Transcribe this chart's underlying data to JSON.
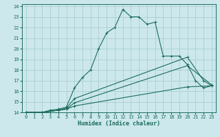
{
  "xlabel": "Humidex (Indice chaleur)",
  "bg_color": "#cce8ec",
  "grid_color": "#aacdd4",
  "line_color": "#1a6b5a",
  "xlim": [
    -0.5,
    23.5
  ],
  "ylim": [
    14,
    24.2
  ],
  "xticks": [
    0,
    1,
    2,
    3,
    4,
    5,
    6,
    7,
    8,
    9,
    10,
    11,
    12,
    13,
    14,
    15,
    16,
    17,
    18,
    19,
    20,
    21,
    22,
    23
  ],
  "yticks": [
    14,
    15,
    16,
    17,
    18,
    19,
    20,
    21,
    22,
    23,
    24
  ],
  "lines": [
    {
      "x": [
        0,
        2,
        3,
        4,
        5,
        6,
        7,
        8,
        9,
        10,
        11,
        12,
        13,
        14,
        15,
        16,
        17,
        18,
        19,
        20,
        21,
        22,
        23
      ],
      "y": [
        14,
        14,
        14.2,
        14.3,
        14.5,
        16.3,
        17.3,
        18.0,
        20.0,
        21.5,
        22.0,
        23.7,
        23.0,
        23.0,
        22.3,
        22.5,
        19.3,
        19.3,
        19.3,
        18.5,
        17.0,
        16.3,
        16.5
      ]
    },
    {
      "x": [
        0,
        2,
        3,
        4,
        5,
        6,
        20,
        22,
        23
      ],
      "y": [
        14,
        14,
        14.1,
        14.2,
        14.4,
        15.3,
        19.2,
        17.0,
        16.5
      ]
    },
    {
      "x": [
        0,
        2,
        3,
        4,
        5,
        6,
        20,
        23
      ],
      "y": [
        14,
        14,
        14.1,
        14.2,
        14.3,
        14.9,
        18.4,
        16.6
      ]
    },
    {
      "x": [
        0,
        2,
        3,
        4,
        5,
        6,
        20,
        23
      ],
      "y": [
        14,
        14,
        14.1,
        14.2,
        14.3,
        14.6,
        16.4,
        16.5
      ]
    }
  ],
  "marker": "+"
}
